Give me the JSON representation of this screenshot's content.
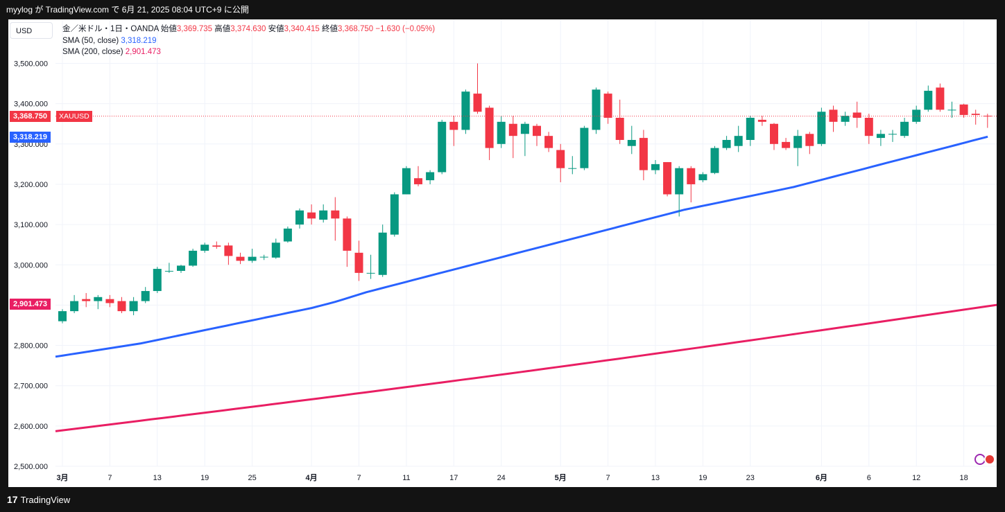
{
  "header": {
    "text": "myylog が TradingView.com で 6月 21, 2025 08:04 UTC+9 に公開"
  },
  "toolbar": {
    "currency": "USD"
  },
  "legend": {
    "symbol": "金／米ドル・1日・OANDA",
    "open_label": "始値",
    "open": "3,369.735",
    "high_label": "高値",
    "high": "3,374.630",
    "low_label": "安値",
    "low": "3,340.415",
    "close_label": "終値",
    "close": "3,368.750",
    "change": "−1.630 (−0.05%)",
    "sma50_label": "SMA (50, close)",
    "sma50_value": "3,318.219",
    "sma200_label": "SMA (200, close)",
    "sma200_value": "2,901.473"
  },
  "price_tags": {
    "last": "3,368.750",
    "symbol": "XAUUSD",
    "sma50": "3,318.219",
    "sma200": "2,901.473"
  },
  "footer": {
    "brand": "TradingView",
    "logo": "17"
  },
  "colors": {
    "up": "#089981",
    "down": "#f23645",
    "sma50": "#2962ff",
    "sma200": "#e91e63",
    "grid": "#f0f3fa"
  },
  "chart_data": {
    "type": "candlestick",
    "y_axis": {
      "min": 2500,
      "max": 3500,
      "step": 100,
      "tick_labels": [
        "2,500.000",
        "2,600.000",
        "2,700.000",
        "2,800.000",
        "2,900.000",
        "3,000.000",
        "3,100.000",
        "3,200.000",
        "3,300.000",
        "3,400.000",
        "3,500.000"
      ]
    },
    "x_axis": {
      "ticks": [
        {
          "i": 0,
          "label": "3月"
        },
        {
          "i": 4,
          "label": "7"
        },
        {
          "i": 8,
          "label": "13"
        },
        {
          "i": 12,
          "label": "19"
        },
        {
          "i": 16,
          "label": "25"
        },
        {
          "i": 21,
          "label": "4月"
        },
        {
          "i": 25,
          "label": "7"
        },
        {
          "i": 29,
          "label": "11"
        },
        {
          "i": 33,
          "label": "17"
        },
        {
          "i": 37,
          "label": "24"
        },
        {
          "i": 42,
          "label": "5月"
        },
        {
          "i": 46,
          "label": "7"
        },
        {
          "i": 50,
          "label": "13"
        },
        {
          "i": 54,
          "label": "19"
        },
        {
          "i": 58,
          "label": "23"
        },
        {
          "i": 64,
          "label": "6月"
        },
        {
          "i": 68,
          "label": "6"
        },
        {
          "i": 72,
          "label": "12"
        },
        {
          "i": 76,
          "label": "18"
        }
      ]
    },
    "candles": [
      [
        2860,
        2890,
        2855,
        2885
      ],
      [
        2885,
        2925,
        2880,
        2910
      ],
      [
        2915,
        2930,
        2895,
        2910
      ],
      [
        2910,
        2925,
        2890,
        2920
      ],
      [
        2915,
        2925,
        2895,
        2905
      ],
      [
        2910,
        2920,
        2880,
        2885
      ],
      [
        2885,
        2920,
        2875,
        2910
      ],
      [
        2910,
        2945,
        2905,
        2935
      ],
      [
        2935,
        2995,
        2930,
        2990
      ],
      [
        2985,
        3005,
        2980,
        2985
      ],
      [
        2985,
        3000,
        2980,
        2998
      ],
      [
        2998,
        3040,
        2995,
        3035
      ],
      [
        3035,
        3055,
        3030,
        3050
      ],
      [
        3048,
        3058,
        3040,
        3045
      ],
      [
        3048,
        3055,
        3000,
        3022
      ],
      [
        3020,
        3030,
        3002,
        3010
      ],
      [
        3010,
        3040,
        3005,
        3020
      ],
      [
        3020,
        3025,
        3012,
        3020
      ],
      [
        3018,
        3065,
        3015,
        3055
      ],
      [
        3058,
        3095,
        3055,
        3090
      ],
      [
        3100,
        3140,
        3090,
        3135
      ],
      [
        3130,
        3150,
        3100,
        3115
      ],
      [
        3112,
        3150,
        3105,
        3135
      ],
      [
        3135,
        3168,
        3060,
        3115
      ],
      [
        3115,
        3120,
        2995,
        3035
      ],
      [
        3030,
        3060,
        2960,
        2980
      ],
      [
        2980,
        3025,
        2965,
        2980
      ],
      [
        2975,
        3100,
        2970,
        3080
      ],
      [
        3075,
        3180,
        3070,
        3175
      ],
      [
        3175,
        3245,
        3175,
        3240
      ],
      [
        3215,
        3245,
        3195,
        3200
      ],
      [
        3210,
        3235,
        3200,
        3230
      ],
      [
        3230,
        3360,
        3225,
        3355
      ],
      [
        3355,
        3370,
        3295,
        3335
      ],
      [
        3335,
        3435,
        3325,
        3430
      ],
      [
        3425,
        3500,
        3375,
        3380
      ],
      [
        3390,
        3395,
        3260,
        3290
      ],
      [
        3300,
        3370,
        3290,
        3355
      ],
      [
        3350,
        3370,
        3265,
        3320
      ],
      [
        3325,
        3355,
        3270,
        3350
      ],
      [
        3345,
        3350,
        3295,
        3320
      ],
      [
        3320,
        3330,
        3280,
        3290
      ],
      [
        3285,
        3300,
        3205,
        3240
      ],
      [
        3240,
        3270,
        3225,
        3240
      ],
      [
        3240,
        3345,
        3235,
        3340
      ],
      [
        3335,
        3440,
        3325,
        3435
      ],
      [
        3425,
        3430,
        3350,
        3365
      ],
      [
        3365,
        3410,
        3300,
        3310
      ],
      [
        3295,
        3345,
        3275,
        3310
      ],
      [
        3315,
        3335,
        3210,
        3235
      ],
      [
        3235,
        3260,
        3225,
        3250
      ],
      [
        3255,
        3255,
        3170,
        3175
      ],
      [
        3175,
        3245,
        3120,
        3240
      ],
      [
        3240,
        3245,
        3155,
        3200
      ],
      [
        3210,
        3230,
        3205,
        3225
      ],
      [
        3228,
        3295,
        3225,
        3290
      ],
      [
        3290,
        3320,
        3285,
        3310
      ],
      [
        3295,
        3345,
        3280,
        3320
      ],
      [
        3310,
        3370,
        3295,
        3365
      ],
      [
        3360,
        3370,
        3345,
        3355
      ],
      [
        3350,
        3352,
        3285,
        3300
      ],
      [
        3305,
        3315,
        3285,
        3290
      ],
      [
        3290,
        3335,
        3245,
        3320
      ],
      [
        3325,
        3330,
        3275,
        3295
      ],
      [
        3300,
        3390,
        3295,
        3380
      ],
      [
        3385,
        3395,
        3330,
        3355
      ],
      [
        3355,
        3380,
        3345,
        3370
      ],
      [
        3378,
        3405,
        3340,
        3365
      ],
      [
        3365,
        3375,
        3300,
        3320
      ],
      [
        3315,
        3335,
        3295,
        3325
      ],
      [
        3325,
        3335,
        3305,
        3325
      ],
      [
        3320,
        3365,
        3315,
        3355
      ],
      [
        3355,
        3395,
        3350,
        3385
      ],
      [
        3385,
        3445,
        3380,
        3432
      ],
      [
        3440,
        3450,
        3380,
        3385
      ],
      [
        3385,
        3405,
        3365,
        3385
      ],
      [
        3398,
        3400,
        3365,
        3372
      ],
      [
        3375,
        3385,
        3348,
        3372
      ],
      [
        3370,
        3375,
        3340,
        3369
      ]
    ],
    "sma50": [
      2772,
      2775,
      2778,
      2781,
      2784,
      2787,
      2790,
      2793,
      2796,
      2799,
      2802,
      2805,
      2809,
      2813,
      2817,
      2821,
      2825,
      2829,
      2833,
      2837,
      2841,
      2845,
      2849,
      2853,
      2857,
      2861,
      2865,
      2869,
      2873,
      2877,
      2881,
      2885,
      2889,
      2893,
      2898,
      2903,
      2908,
      2914,
      2920,
      2926,
      2932,
      2937,
      2942,
      2947,
      2952,
      2957,
      2962,
      2967,
      2972,
      2977,
      2982,
      2987,
      2992,
      2997,
      3002,
      3007,
      3012,
      3017,
      3022,
      3027,
      3032,
      3037,
      3042,
      3047,
      3052,
      3057,
      3062,
      3067,
      3072,
      3077,
      3082,
      3087,
      3092,
      3097,
      3102,
      3107,
      3112,
      3117,
      3122,
      3127,
      3132,
      3137,
      3141,
      3145,
      3149,
      3153,
      3157,
      3161,
      3165,
      3169,
      3173,
      3177,
      3181,
      3185,
      3189,
      3193,
      3198,
      3203,
      3208,
      3213,
      3218,
      3223,
      3228,
      3233,
      3238,
      3243,
      3248,
      3253,
      3258,
      3263,
      3268,
      3273,
      3278,
      3283,
      3288,
      3293,
      3298,
      3303,
      3308,
      3313,
      3318
    ],
    "sma200": [
      2587,
      2901.473
    ]
  }
}
